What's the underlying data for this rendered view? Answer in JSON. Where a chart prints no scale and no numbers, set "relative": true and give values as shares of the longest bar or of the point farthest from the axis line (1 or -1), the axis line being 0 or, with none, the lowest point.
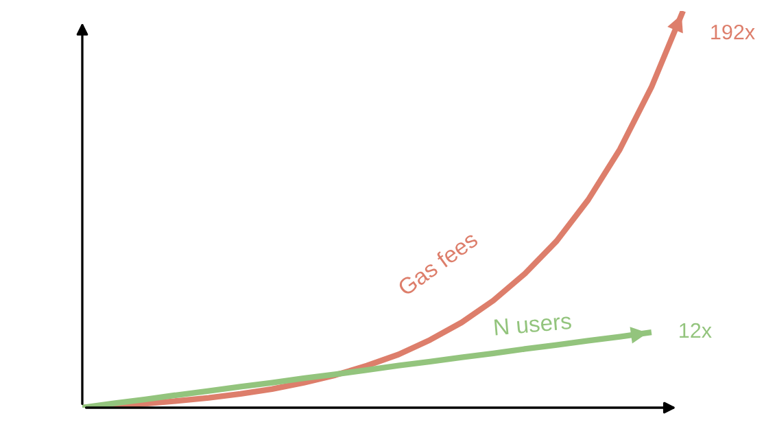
{
  "chart_data": {
    "type": "line",
    "relative": true,
    "tick_labels": false,
    "categories": [
      null,
      null,
      null,
      null,
      null,
      null,
      null,
      null,
      null,
      null,
      null,
      null,
      null,
      null,
      null,
      null,
      null,
      null,
      null,
      null
    ],
    "series": [
      {
        "name": "Gas fees",
        "color": "#dd7e6b",
        "values": [
          0,
          0.004,
          0.01,
          0.017,
          0.025,
          0.035,
          0.047,
          0.063,
          0.082,
          0.106,
          0.134,
          0.171,
          0.215,
          0.27,
          0.338,
          0.42,
          0.524,
          0.651,
          0.808,
          1
        ]
      },
      {
        "name": "N users",
        "color": "#93c47d",
        "values": [
          0,
          0.011,
          0.021,
          0.032,
          0.042,
          0.053,
          0.063,
          0.074,
          0.084,
          0.095,
          0.106,
          0.116,
          0.127,
          0.137,
          0.148,
          0.158,
          0.169,
          0.179,
          0.19,
          null
        ]
      }
    ],
    "annotations": [
      "192x",
      "12x"
    ]
  }
}
